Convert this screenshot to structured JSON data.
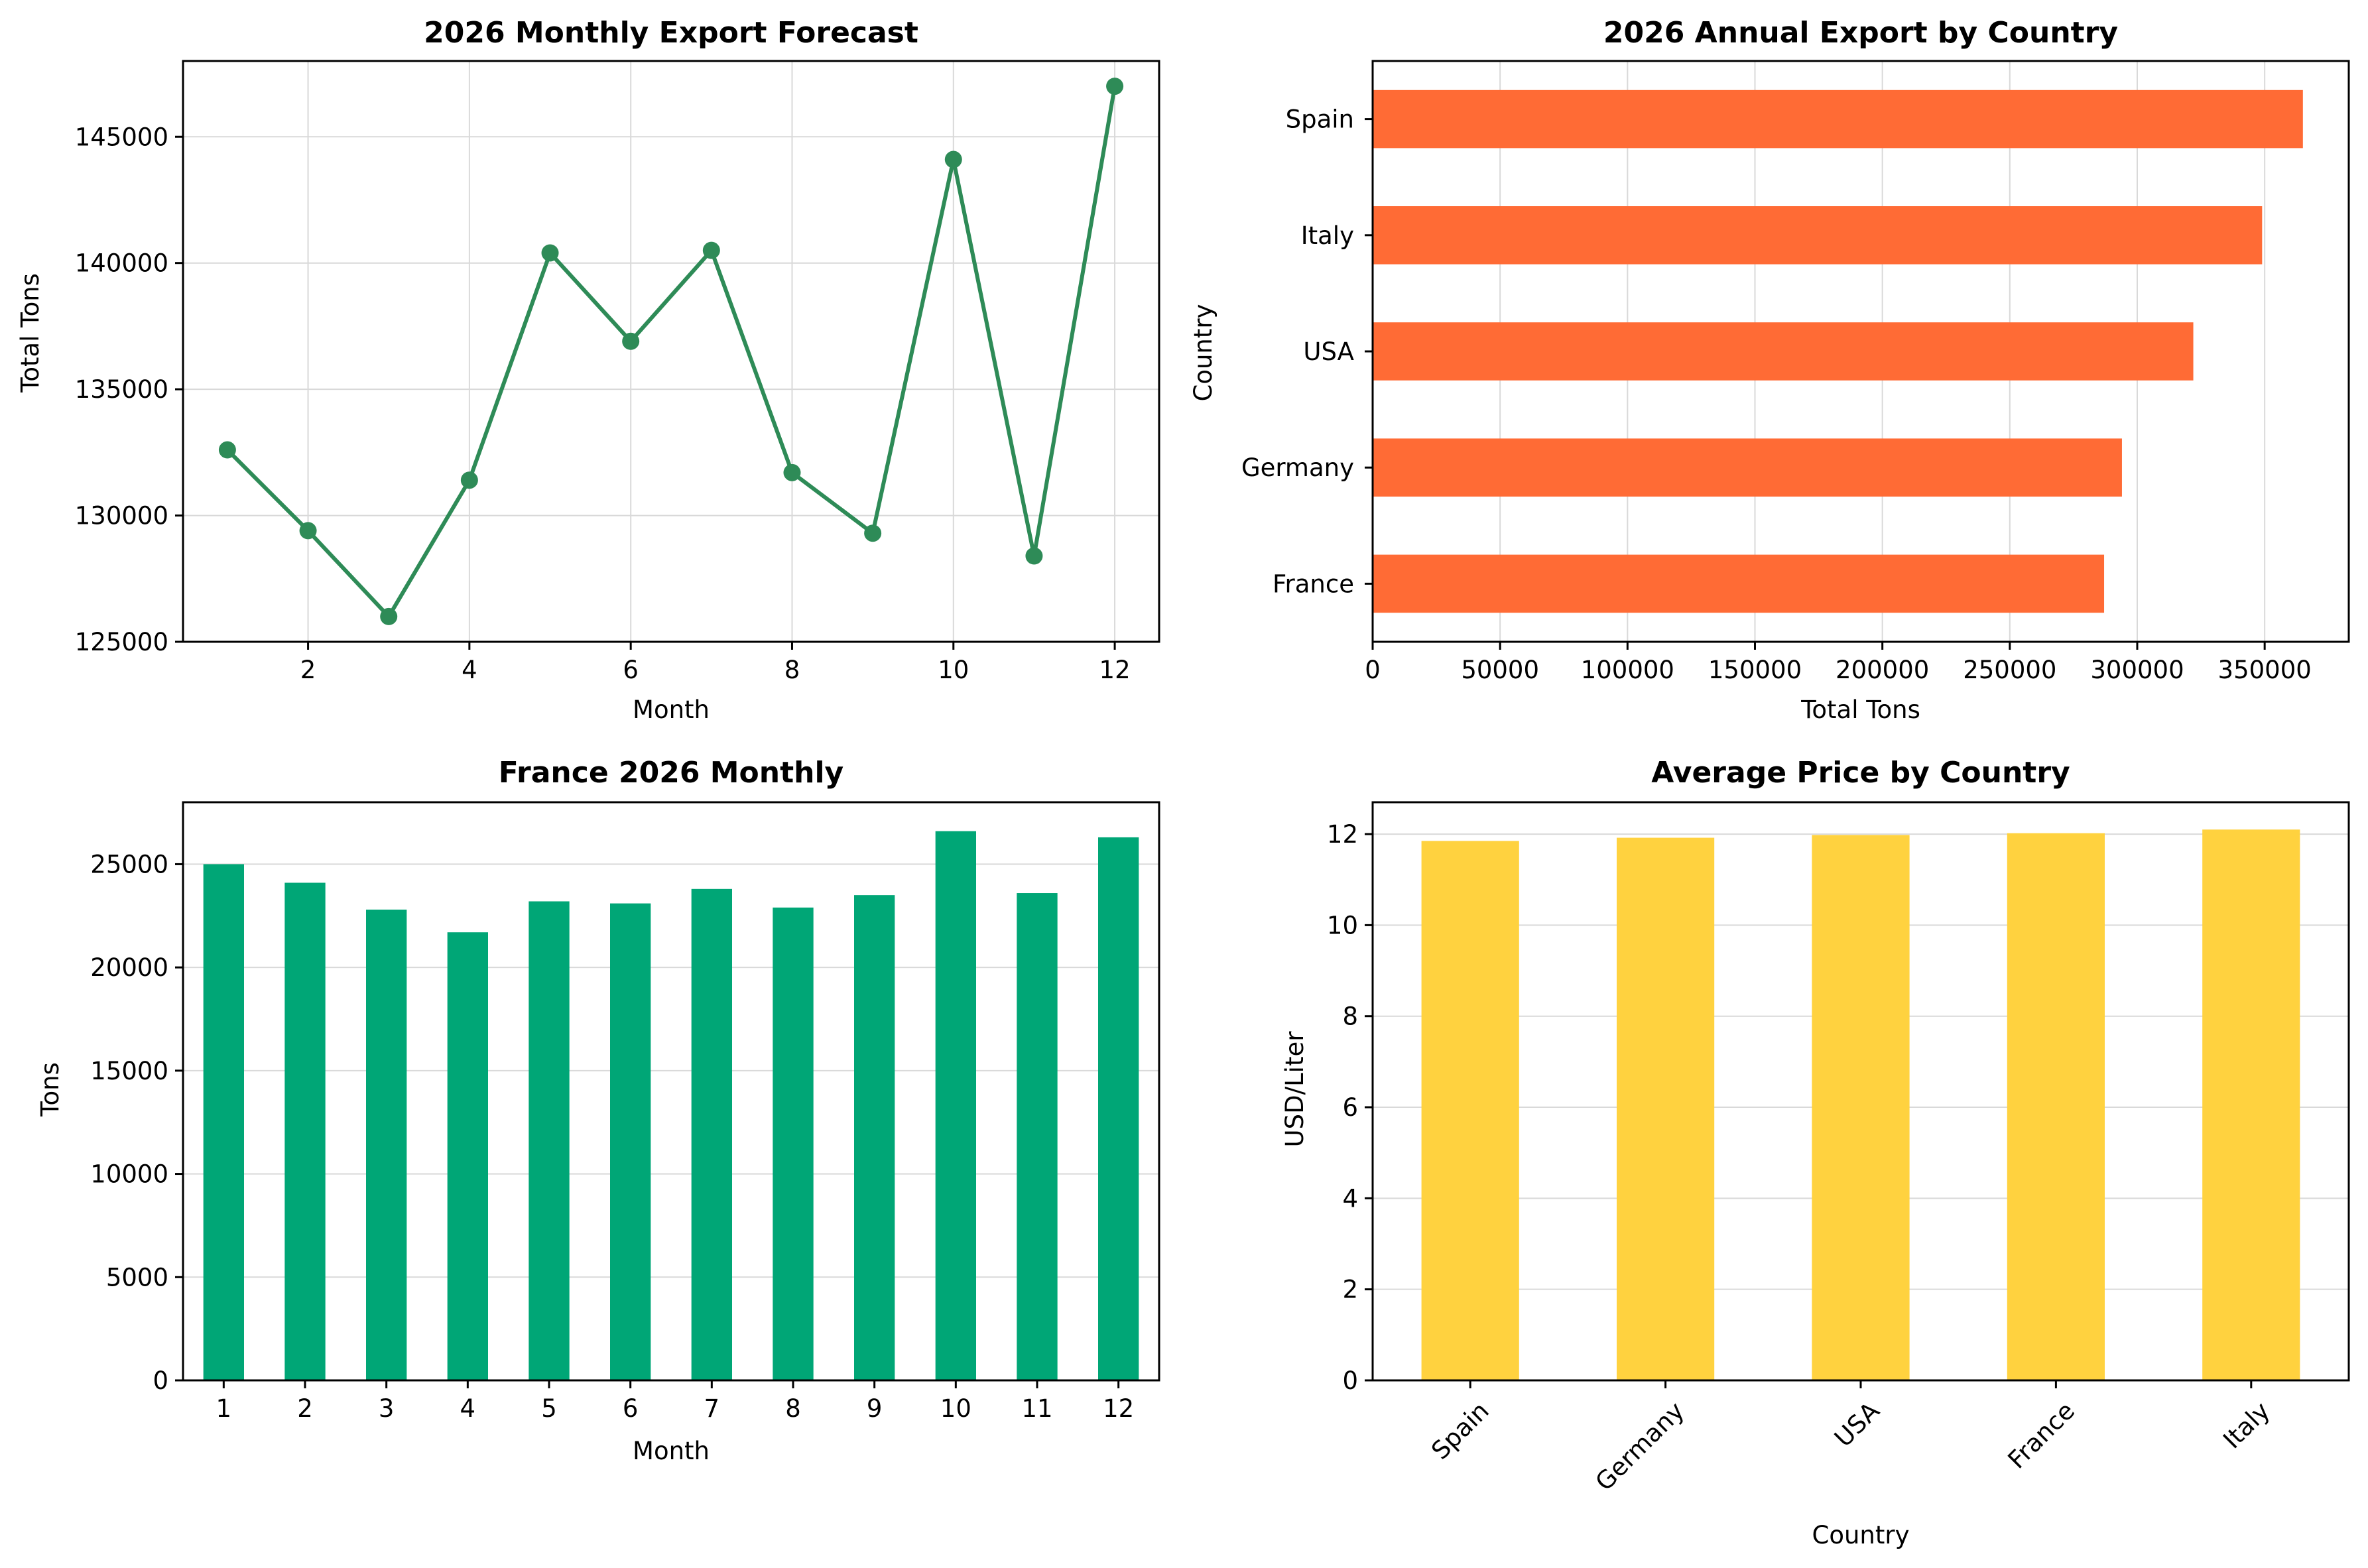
{
  "chart_data": [
    {
      "type": "line",
      "title": "2026 Monthly Export Forecast",
      "xlabel": "Month",
      "ylabel": "Total Tons",
      "x": [
        1,
        2,
        3,
        4,
        5,
        6,
        7,
        8,
        9,
        10,
        11,
        12
      ],
      "values": [
        132600,
        129400,
        126000,
        131400,
        140400,
        136900,
        140500,
        131700,
        129300,
        144100,
        128400,
        147000
      ],
      "xlim": [
        0.45,
        12.55
      ],
      "ylim": [
        125000,
        148000
      ],
      "xticks": [
        2,
        4,
        6,
        8,
        10,
        12
      ],
      "yticks": [
        125000,
        130000,
        135000,
        140000,
        145000
      ],
      "grid": true,
      "color": "#2e8b57"
    },
    {
      "type": "bar",
      "orientation": "horizontal",
      "title": "2026 Annual Export by Country",
      "xlabel": "Total Tons",
      "ylabel": "Country",
      "categories": [
        "France",
        "Germany",
        "USA",
        "Italy",
        "Spain"
      ],
      "values": [
        287000,
        294000,
        322000,
        349000,
        365000
      ],
      "xlim": [
        0,
        383000
      ],
      "xticks": [
        0,
        50000,
        100000,
        150000,
        200000,
        250000,
        300000,
        350000
      ],
      "grid": true,
      "color": "#ff6b35"
    },
    {
      "type": "bar",
      "title": "France 2026 Monthly",
      "xlabel": "Month",
      "ylabel": "Tons",
      "categories": [
        "1",
        "2",
        "3",
        "4",
        "5",
        "6",
        "7",
        "8",
        "9",
        "10",
        "11",
        "12"
      ],
      "values": [
        25000,
        24100,
        22800,
        21700,
        23200,
        23100,
        23800,
        22900,
        23500,
        26600,
        23600,
        26300
      ],
      "ylim": [
        0,
        28000
      ],
      "yticks": [
        0,
        5000,
        10000,
        15000,
        20000,
        25000
      ],
      "grid": true,
      "color": "#00a676"
    },
    {
      "type": "bar",
      "title": "Average Price by Country",
      "xlabel": "Country",
      "ylabel": "USD/Liter",
      "categories": [
        "Spain",
        "Germany",
        "USA",
        "France",
        "Italy"
      ],
      "values": [
        11.85,
        11.92,
        11.98,
        12.02,
        12.1
      ],
      "ylim": [
        0,
        12.7
      ],
      "yticks": [
        0,
        2,
        4,
        6,
        8,
        10,
        12
      ],
      "grid": true,
      "color": "#ffd23f"
    }
  ]
}
